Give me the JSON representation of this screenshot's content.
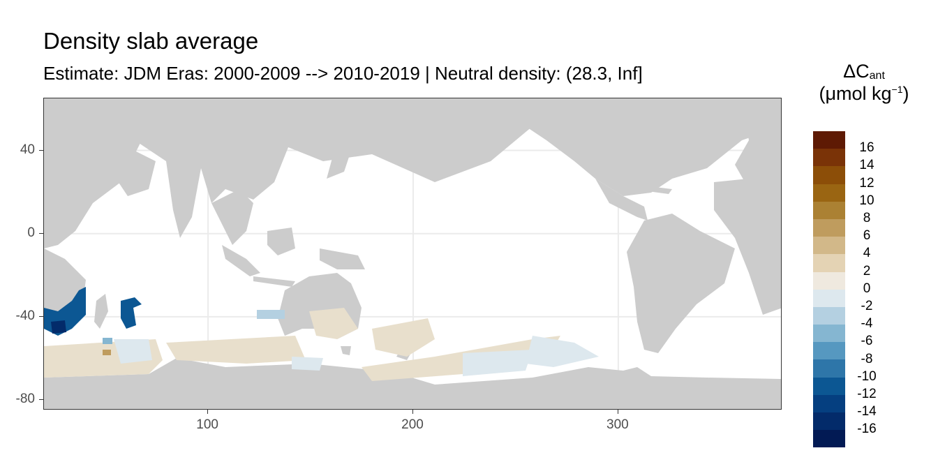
{
  "title": "Density slab average",
  "subtitle": "Estimate: JDM Eras: 2000-2009 --> 2010-2019 | Neutral density: (28.3, Inf]",
  "map": {
    "x_range": [
      20,
      380
    ],
    "y_range": [
      -85,
      65
    ],
    "x_ticks": [
      {
        "value": 100,
        "label": "100"
      },
      {
        "value": 200,
        "label": "200"
      },
      {
        "value": 300,
        "label": "300"
      }
    ],
    "y_ticks": [
      {
        "value": 40,
        "label": "40"
      },
      {
        "value": 0,
        "label": "0"
      },
      {
        "value": -40,
        "label": "-40"
      },
      {
        "value": -80,
        "label": "-80"
      }
    ],
    "land_color": "#cccccc",
    "ocean_color": "#ffffff",
    "grid_color": "#ebebeb"
  },
  "legend": {
    "title_main": "ΔC",
    "title_sub": "ant",
    "unit_prefix": "(μmol kg",
    "unit_sup": "−1",
    "unit_suffix": ")",
    "colors": [
      "#67001f00",
      "#5e1a04",
      "#7a3307",
      "#8c4e08",
      "#9a6512",
      "#ab8133",
      "#bf9c5e",
      "#d2b889",
      "#e4d3b4",
      "#efe9df",
      "#dde8ee",
      "#b4d0e1",
      "#85b6d1",
      "#5698c0",
      "#2e76a9",
      "#0c5793",
      "#053f80",
      "#032b6a",
      "#021a54"
    ],
    "labels": [
      "16",
      "14",
      "12",
      "10",
      "8",
      "6",
      "4",
      "2",
      "0",
      "-2",
      "-4",
      "-6",
      "-8",
      "-10",
      "-12",
      "-14",
      "-16"
    ]
  }
}
